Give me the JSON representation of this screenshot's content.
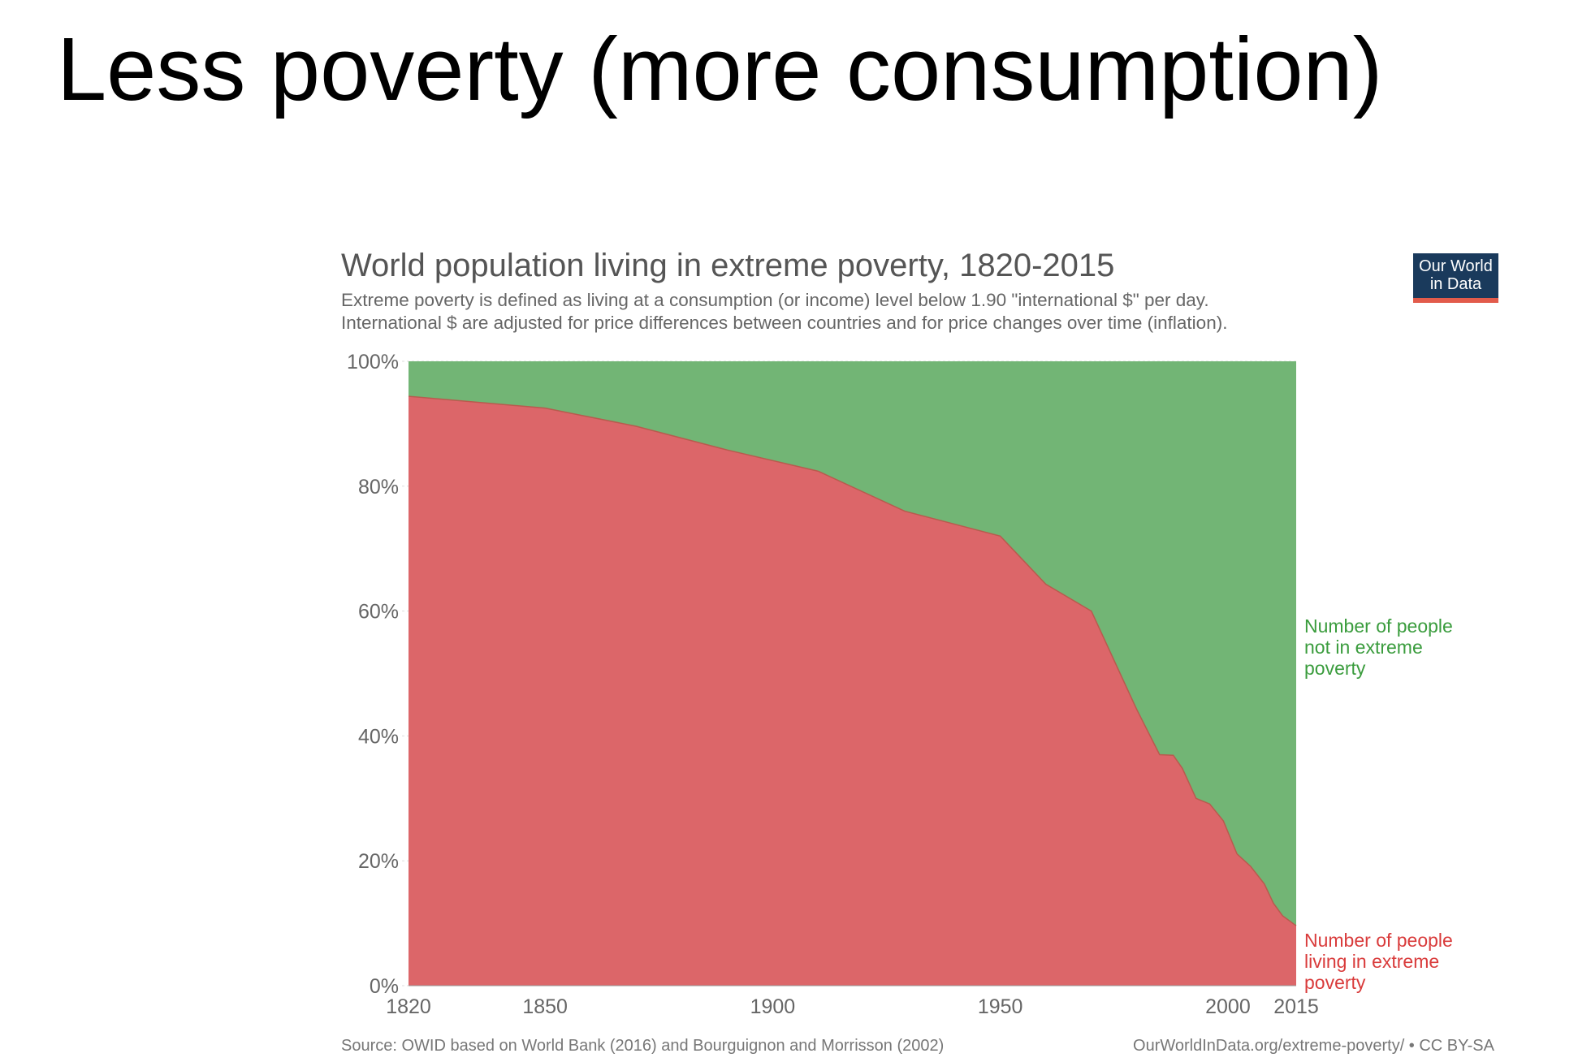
{
  "slide": {
    "title": "Less poverty (more consumption)"
  },
  "logo": {
    "line1": "Our World",
    "line2": "in Data",
    "colors": {
      "background": "#1a3a5c",
      "stripe": "#e25b4b"
    }
  },
  "footer": {
    "source": "Source: OWID based on World Bank (2016) and Bourguignon and Morrisson (2002)",
    "license": "OurWorldInData.org/extreme-poverty/ • CC BY-SA"
  },
  "chart_data": {
    "type": "area",
    "stacked": true,
    "title": "World population living in extreme poverty, 1820-2015",
    "subtitle": [
      "Extreme poverty is defined as living at a consumption (or income) level below 1.90 \"international $\" per day.",
      "International $ are adjusted for price differences between countries and for price changes over time (inflation)."
    ],
    "xlabel": "",
    "ylabel": "",
    "xlim": [
      1820,
      2015
    ],
    "ylim": [
      0,
      100
    ],
    "x_ticks": [
      1820,
      1850,
      1900,
      1950,
      2000,
      2015
    ],
    "y_ticks": [
      {
        "value": 0,
        "label": "0%"
      },
      {
        "value": 20,
        "label": "20%"
      },
      {
        "value": 40,
        "label": "40%"
      },
      {
        "value": 60,
        "label": "60%"
      },
      {
        "value": 80,
        "label": "80%"
      },
      {
        "value": 100,
        "label": "100%"
      }
    ],
    "grid": "horizontal dotted",
    "legend": "right, inline labels",
    "x": [
      1820,
      1850,
      1870,
      1890,
      1910,
      1929,
      1950,
      1960,
      1970,
      1980,
      1985,
      1988,
      1990,
      1993,
      1996,
      1999,
      2002,
      2005,
      2008,
      2010,
      2012,
      2015
    ],
    "series": [
      {
        "name": "Number of people living in extreme poverty",
        "color": "#dc6669",
        "label_color": "#d93b3b",
        "values": [
          94.4,
          92.5,
          89.6,
          85.8,
          82.4,
          76.0,
          72.0,
          64.3,
          60.0,
          44.2,
          37.0,
          36.9,
          34.8,
          30.0,
          29.1,
          26.4,
          21.1,
          19.1,
          16.3,
          13.2,
          11.2,
          9.6
        ]
      },
      {
        "name": "Number of people not in extreme poverty",
        "color": "#72b575",
        "label_color": "#3a9c3d",
        "values": [
          5.6,
          7.5,
          10.4,
          14.2,
          17.6,
          24.0,
          28.0,
          35.7,
          40.0,
          55.8,
          63.0,
          63.1,
          65.2,
          70.0,
          70.9,
          73.6,
          78.9,
          80.9,
          83.7,
          86.8,
          88.8,
          90.4
        ]
      }
    ]
  }
}
